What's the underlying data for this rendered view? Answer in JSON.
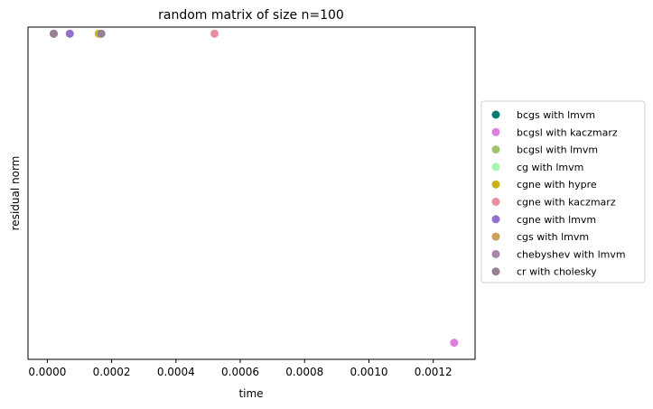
{
  "chart_data": {
    "type": "scatter",
    "title": "random matrix of size n=100",
    "xlabel": "time",
    "ylabel": "residual norm",
    "xlim": [
      -6e-05,
      0.00133
    ],
    "ylim": [
      0,
      1
    ],
    "y_ticks_visible": false,
    "x_ticks": [
      "0.0000",
      "0.0002",
      "0.0004",
      "0.0006",
      "0.0008",
      "0.0010",
      "0.0012"
    ],
    "x_tick_values": [
      0,
      0.0002,
      0.0004,
      0.0006,
      0.0008,
      0.001,
      0.0012
    ],
    "legend_position": "center-right-outside",
    "series": [
      {
        "name": "bcgs with lmvm",
        "color": "#0b7a75",
        "points": []
      },
      {
        "name": "bcgsl with kaczmarz",
        "color": "#df7fde",
        "points": [
          {
            "x": 0.001265,
            "y": 0.05
          }
        ]
      },
      {
        "name": "bcgsl with lmvm",
        "color": "#9fc36f",
        "points": []
      },
      {
        "name": "cg with lmvm",
        "color": "#a8f5b5",
        "points": []
      },
      {
        "name": "cgne with hypre",
        "color": "#c8b416",
        "points": [
          {
            "x": 0.00016,
            "y": 0.98
          }
        ]
      },
      {
        "name": "cgne with kaczmarz",
        "color": "#e98da0",
        "points": [
          {
            "x": 0.00052,
            "y": 0.98
          }
        ]
      },
      {
        "name": "cgne with lmvm",
        "color": "#9470cc",
        "points": [
          {
            "x": 7e-05,
            "y": 0.98
          }
        ]
      },
      {
        "name": "cgs with lmvm",
        "color": "#c9a15a",
        "points": []
      },
      {
        "name": "chebyshev with lmvm",
        "color": "#ac86a8",
        "points": [
          {
            "x": 2e-05,
            "y": 0.98
          }
        ]
      },
      {
        "name": "cr with cholesky",
        "color": "#9a7f92",
        "points": [
          {
            "x": 2e-05,
            "y": 0.98
          },
          {
            "x": 0.000168,
            "y": 0.98
          }
        ]
      }
    ]
  }
}
